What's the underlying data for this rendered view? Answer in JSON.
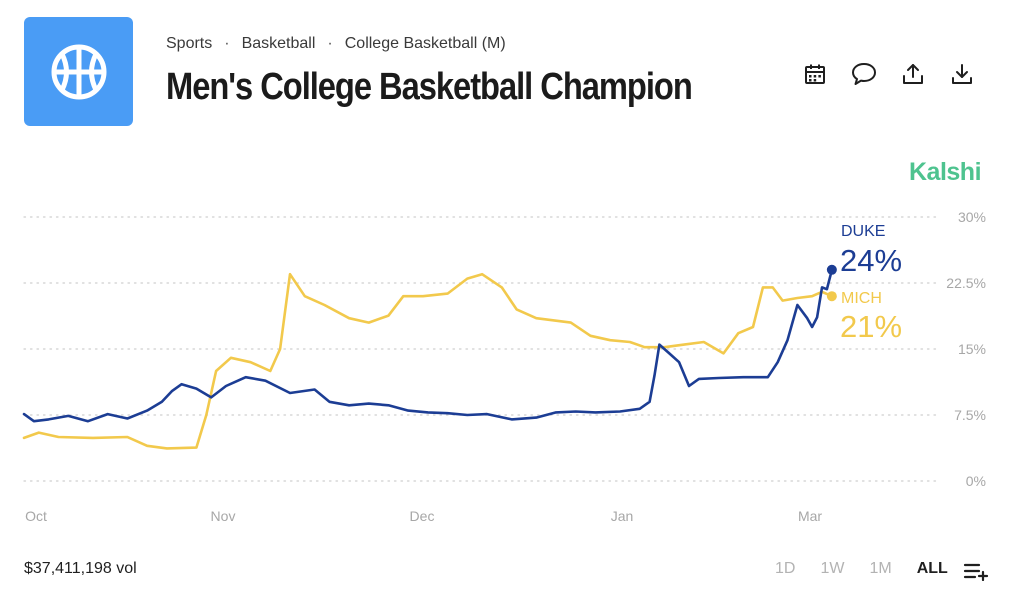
{
  "breadcrumb": [
    "Sports",
    "Basketball",
    "College Basketball (M)"
  ],
  "breadcrumb_sep": "·",
  "title": "Men's College Basketball Champion",
  "brand": "Kalshi",
  "toolbar": [
    "calendar-icon",
    "comment-icon",
    "share-icon",
    "download-icon"
  ],
  "logo_icon": "basketball-icon",
  "footer": {
    "volume": "$37,411,198 vol",
    "ranges": [
      "1D",
      "1W",
      "1M",
      "ALL"
    ],
    "active_range": "ALL",
    "add_icon": "add-to-list-icon"
  },
  "colors": {
    "duke": "#1c3d94",
    "mich": "#f2c94c",
    "brand": "#4ec38f",
    "logo": "#4a9cf5"
  },
  "chart_data": {
    "type": "line",
    "x_ticks": [
      "Oct",
      "Nov",
      "Dec",
      "Jan",
      "Mar"
    ],
    "y_ticks": [
      "30%",
      "22.5%",
      "15%",
      "7.5%",
      "0%"
    ],
    "ylim": [
      0,
      30
    ],
    "xlim": [
      "2024-10-01",
      "2025-03-12"
    ],
    "grid": true,
    "series": [
      {
        "name": "DUKE",
        "label_value": "24%",
        "color": "#1c3d94",
        "points": [
          [
            "2024-10-01",
            7.6
          ],
          [
            "2024-10-03",
            6.8
          ],
          [
            "2024-10-06",
            7.0
          ],
          [
            "2024-10-10",
            7.4
          ],
          [
            "2024-10-14",
            6.8
          ],
          [
            "2024-10-18",
            7.6
          ],
          [
            "2024-10-22",
            7.1
          ],
          [
            "2024-10-26",
            8.0
          ],
          [
            "2024-10-29",
            9.0
          ],
          [
            "2024-10-31",
            10.2
          ],
          [
            "2024-11-02",
            11.0
          ],
          [
            "2024-11-05",
            10.5
          ],
          [
            "2024-11-08",
            9.5
          ],
          [
            "2024-11-11",
            10.8
          ],
          [
            "2024-11-15",
            11.8
          ],
          [
            "2024-11-19",
            11.4
          ],
          [
            "2024-11-24",
            10.0
          ],
          [
            "2024-11-29",
            10.4
          ],
          [
            "2024-12-02",
            9.0
          ],
          [
            "2024-12-06",
            8.6
          ],
          [
            "2024-12-10",
            8.8
          ],
          [
            "2024-12-14",
            8.6
          ],
          [
            "2024-12-18",
            8.0
          ],
          [
            "2024-12-22",
            7.8
          ],
          [
            "2024-12-26",
            7.7
          ],
          [
            "2024-12-30",
            7.5
          ],
          [
            "2025-01-03",
            7.6
          ],
          [
            "2025-01-08",
            7.0
          ],
          [
            "2025-01-13",
            7.2
          ],
          [
            "2025-01-17",
            7.8
          ],
          [
            "2025-01-21",
            7.9
          ],
          [
            "2025-01-25",
            7.8
          ],
          [
            "2025-01-30",
            7.9
          ],
          [
            "2025-02-03",
            8.2
          ],
          [
            "2025-02-05",
            9.0
          ],
          [
            "2025-02-06",
            12.0
          ],
          [
            "2025-02-07",
            15.5
          ],
          [
            "2025-02-09",
            14.5
          ],
          [
            "2025-02-11",
            13.5
          ],
          [
            "2025-02-13",
            10.8
          ],
          [
            "2025-02-15",
            11.6
          ],
          [
            "2025-02-19",
            11.7
          ],
          [
            "2025-02-24",
            11.8
          ],
          [
            "2025-03-01",
            11.8
          ],
          [
            "2025-03-03",
            13.5
          ],
          [
            "2025-03-05",
            16.0
          ],
          [
            "2025-03-07",
            20.0
          ],
          [
            "2025-03-09",
            18.5
          ],
          [
            "2025-03-10",
            17.5
          ],
          [
            "2025-03-11",
            18.6
          ],
          [
            "2025-03-12",
            22.0
          ],
          [
            "2025-03-13",
            21.8
          ],
          [
            "2025-03-14",
            24.0
          ]
        ]
      },
      {
        "name": "MICH",
        "label_value": "21%",
        "color": "#f2c94c",
        "points": [
          [
            "2024-10-01",
            4.9
          ],
          [
            "2024-10-04",
            5.5
          ],
          [
            "2024-10-08",
            5.0
          ],
          [
            "2024-10-15",
            4.9
          ],
          [
            "2024-10-22",
            5.0
          ],
          [
            "2024-10-26",
            4.0
          ],
          [
            "2024-10-30",
            3.7
          ],
          [
            "2024-11-05",
            3.8
          ],
          [
            "2024-11-07",
            7.5
          ],
          [
            "2024-11-09",
            12.5
          ],
          [
            "2024-11-12",
            14.0
          ],
          [
            "2024-11-16",
            13.5
          ],
          [
            "2024-11-20",
            12.5
          ],
          [
            "2024-11-22",
            15.0
          ],
          [
            "2024-11-24",
            23.5
          ],
          [
            "2024-11-27",
            21.0
          ],
          [
            "2024-12-01",
            20.0
          ],
          [
            "2024-12-06",
            18.5
          ],
          [
            "2024-12-10",
            18.0
          ],
          [
            "2024-12-14",
            18.8
          ],
          [
            "2024-12-17",
            21.0
          ],
          [
            "2024-12-21",
            21.0
          ],
          [
            "2024-12-26",
            21.3
          ],
          [
            "2024-12-30",
            23.0
          ],
          [
            "2025-01-02",
            23.5
          ],
          [
            "2025-01-06",
            22.0
          ],
          [
            "2025-01-09",
            19.5
          ],
          [
            "2025-01-13",
            18.5
          ],
          [
            "2025-01-20",
            18.0
          ],
          [
            "2025-01-24",
            16.5
          ],
          [
            "2025-01-28",
            16.0
          ],
          [
            "2025-02-01",
            15.8
          ],
          [
            "2025-02-04",
            15.2
          ],
          [
            "2025-02-08",
            15.2
          ],
          [
            "2025-02-12",
            15.5
          ],
          [
            "2025-02-16",
            15.8
          ],
          [
            "2025-02-20",
            14.5
          ],
          [
            "2025-02-23",
            16.8
          ],
          [
            "2025-02-26",
            17.5
          ],
          [
            "2025-02-28",
            22.0
          ],
          [
            "2025-03-02",
            22.0
          ],
          [
            "2025-03-04",
            20.5
          ],
          [
            "2025-03-07",
            20.8
          ],
          [
            "2025-03-10",
            21.0
          ],
          [
            "2025-03-12",
            21.5
          ],
          [
            "2025-03-14",
            21.0
          ]
        ]
      }
    ]
  }
}
